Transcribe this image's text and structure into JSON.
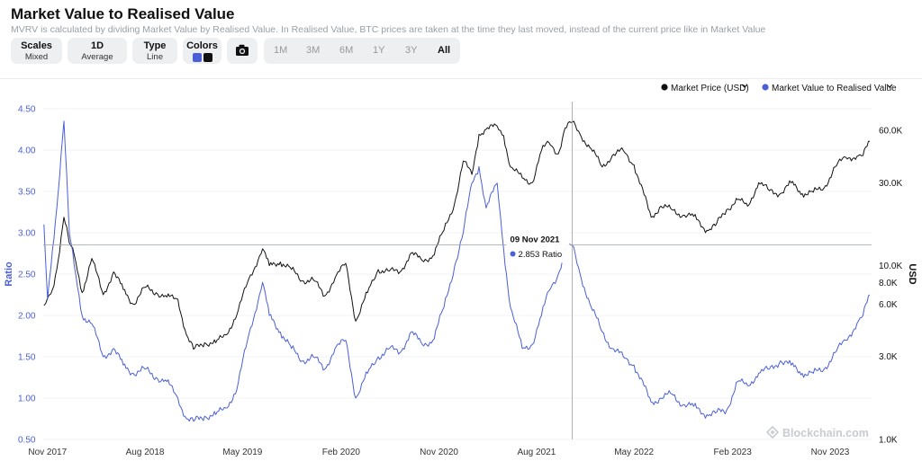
{
  "header": {
    "title": "Market Value to Realised Value",
    "subtitle": "MVRV is calculated by dividing Market Value by Realised Value. In Realised Value, BTC prices are taken at the time they last moved, instead of the current price like in Market Value"
  },
  "toolbar": {
    "scales": {
      "label": "Scales",
      "value": "Mixed"
    },
    "interval": {
      "label": "1D",
      "value": "Average"
    },
    "type": {
      "label": "Type",
      "value": "Line"
    },
    "colors": {
      "label": "Colors",
      "swatches": [
        "#4a5fd8",
        "#111111"
      ]
    },
    "camera_icon": "camera-icon",
    "ranges": [
      "1M",
      "3M",
      "6M",
      "1Y",
      "3Y",
      "All"
    ],
    "active_range": "All"
  },
  "legend": {
    "market_price": "Market Price (USD)",
    "mvrv": "Market Value to Realised Value"
  },
  "tooltip": {
    "date": "09 Nov 2021",
    "value": "2.853 Ratio"
  },
  "watermark": "Blockchain.com",
  "chart_data": {
    "type": "line",
    "x_tick_labels": [
      "Nov 2017",
      "Aug 2018",
      "May 2019",
      "Feb 2020",
      "Nov 2020",
      "Aug 2021",
      "May 2022",
      "Feb 2023",
      "Nov 2023"
    ],
    "x_tick_dates": [
      "2017-11-01",
      "2018-08-01",
      "2019-05-01",
      "2020-02-01",
      "2020-11-01",
      "2021-08-01",
      "2022-05-01",
      "2023-02-01",
      "2023-11-01"
    ],
    "x_range": [
      "2017-10-20",
      "2024-02-25"
    ],
    "y_left": {
      "label": "Ratio",
      "range": [
        0.5,
        4.5
      ],
      "ticks": [
        "0.50",
        "1.00",
        "1.50",
        "2.00",
        "2.50",
        "3.00",
        "3.50",
        "4.00",
        "4.50"
      ],
      "color": "#4a5fd8"
    },
    "y_right": {
      "label": "USD",
      "scale": "log",
      "range": [
        1000,
        80000
      ],
      "ticks": [
        {
          "label": "1.0K",
          "value": 1000
        },
        {
          "label": "3.0K",
          "value": 3000
        },
        {
          "label": "6.0K",
          "value": 6000
        },
        {
          "label": "8.0K",
          "value": 8000
        },
        {
          "label": "10.0K",
          "value": 10000
        },
        {
          "label": "30.0K",
          "value": 30000
        },
        {
          "label": "60.0K",
          "value": 60000
        }
      ]
    },
    "crosshair": {
      "date": "2021-11-09",
      "ratio": 2.853
    },
    "series": [
      {
        "name": "Market Value to Realised Value",
        "axis": "left",
        "color": "#4a5fd8",
        "x": [
          "2017-10-22",
          "2017-11-01",
          "2017-11-15",
          "2017-12-01",
          "2017-12-17",
          "2018-01-01",
          "2018-01-15",
          "2018-02-06",
          "2018-03-05",
          "2018-04-06",
          "2018-05-05",
          "2018-06-01",
          "2018-06-29",
          "2018-08-01",
          "2018-09-01",
          "2018-10-01",
          "2018-11-01",
          "2018-11-25",
          "2018-12-15",
          "2019-01-15",
          "2019-02-15",
          "2019-03-15",
          "2019-04-15",
          "2019-05-15",
          "2019-06-26",
          "2019-07-15",
          "2019-08-15",
          "2019-09-15",
          "2019-10-15",
          "2019-11-15",
          "2019-12-17",
          "2020-01-15",
          "2020-02-14",
          "2020-03-13",
          "2020-04-15",
          "2020-05-15",
          "2020-06-15",
          "2020-07-15",
          "2020-08-15",
          "2020-09-15",
          "2020-10-15",
          "2020-11-15",
          "2020-12-15",
          "2021-01-08",
          "2021-02-01",
          "2021-02-21",
          "2021-03-13",
          "2021-04-13",
          "2021-05-01",
          "2021-05-20",
          "2021-06-22",
          "2021-07-20",
          "2021-08-15",
          "2021-09-05",
          "2021-10-01",
          "2021-10-20",
          "2021-11-09",
          "2021-12-01",
          "2022-01-01",
          "2022-02-01",
          "2022-03-01",
          "2022-04-01",
          "2022-05-01",
          "2022-06-18",
          "2022-07-15",
          "2022-08-15",
          "2022-09-15",
          "2022-10-15",
          "2022-11-21",
          "2022-12-15",
          "2023-01-15",
          "2023-02-15",
          "2023-03-15",
          "2023-04-15",
          "2023-05-15",
          "2023-06-15",
          "2023-07-15",
          "2023-08-15",
          "2023-09-15",
          "2023-10-15",
          "2023-11-15",
          "2023-12-15",
          "2024-01-15",
          "2024-02-01",
          "2024-02-20"
        ],
        "values": [
          3.1,
          2.2,
          2.8,
          3.5,
          4.35,
          3.0,
          2.6,
          2.0,
          1.9,
          1.5,
          1.6,
          1.4,
          1.3,
          1.35,
          1.25,
          1.2,
          1.0,
          0.75,
          0.72,
          0.78,
          0.8,
          0.88,
          1.1,
          1.7,
          2.4,
          2.0,
          1.8,
          1.6,
          1.45,
          1.5,
          1.35,
          1.6,
          1.7,
          1.0,
          1.3,
          1.5,
          1.6,
          1.55,
          1.8,
          1.65,
          1.7,
          2.1,
          2.6,
          3.0,
          3.6,
          3.8,
          3.3,
          3.6,
          2.8,
          2.1,
          1.6,
          1.65,
          2.0,
          2.3,
          2.5,
          2.8,
          2.85,
          2.5,
          2.1,
          1.8,
          1.6,
          1.5,
          1.4,
          0.95,
          1.0,
          1.05,
          0.92,
          0.9,
          0.8,
          0.82,
          0.85,
          1.2,
          1.15,
          1.3,
          1.35,
          1.45,
          1.4,
          1.3,
          1.3,
          1.35,
          1.55,
          1.7,
          1.9,
          2.0,
          2.25
        ]
      },
      {
        "name": "Market Price (USD)",
        "axis": "right",
        "color": "#111111",
        "x": [
          "2017-10-22",
          "2017-11-01",
          "2017-11-15",
          "2017-12-01",
          "2017-12-17",
          "2018-01-01",
          "2018-01-15",
          "2018-02-06",
          "2018-03-05",
          "2018-04-06",
          "2018-05-05",
          "2018-06-01",
          "2018-06-29",
          "2018-08-01",
          "2018-09-01",
          "2018-10-01",
          "2018-11-01",
          "2018-11-25",
          "2018-12-15",
          "2019-01-15",
          "2019-02-15",
          "2019-03-15",
          "2019-04-15",
          "2019-05-15",
          "2019-06-26",
          "2019-07-15",
          "2019-08-15",
          "2019-09-15",
          "2019-10-15",
          "2019-11-15",
          "2019-12-17",
          "2020-01-15",
          "2020-02-14",
          "2020-03-13",
          "2020-04-15",
          "2020-05-15",
          "2020-06-15",
          "2020-07-15",
          "2020-08-15",
          "2020-09-15",
          "2020-10-15",
          "2020-11-15",
          "2020-12-15",
          "2021-01-08",
          "2021-02-01",
          "2021-02-21",
          "2021-03-13",
          "2021-04-13",
          "2021-05-01",
          "2021-05-20",
          "2021-06-22",
          "2021-07-20",
          "2021-08-15",
          "2021-09-05",
          "2021-10-01",
          "2021-10-20",
          "2021-11-09",
          "2021-12-01",
          "2022-01-01",
          "2022-02-01",
          "2022-03-01",
          "2022-04-01",
          "2022-05-01",
          "2022-06-18",
          "2022-07-15",
          "2022-08-15",
          "2022-09-15",
          "2022-10-15",
          "2022-11-21",
          "2022-12-15",
          "2023-01-15",
          "2023-02-15",
          "2023-03-15",
          "2023-04-15",
          "2023-05-15",
          "2023-06-15",
          "2023-07-15",
          "2023-08-15",
          "2023-09-15",
          "2023-10-15",
          "2023-11-15",
          "2023-12-15",
          "2024-01-15",
          "2024-02-01",
          "2024-02-20"
        ],
        "values": [
          5900,
          6500,
          7300,
          10800,
          19000,
          13500,
          11500,
          7000,
          11000,
          6800,
          9200,
          7300,
          6000,
          7500,
          7000,
          6600,
          6400,
          4000,
          3300,
          3600,
          3600,
          4000,
          5200,
          8000,
          12500,
          10000,
          10500,
          9500,
          8200,
          8300,
          6700,
          8500,
          10300,
          4800,
          7000,
          9500,
          9300,
          9200,
          11800,
          10700,
          11400,
          16000,
          23000,
          40000,
          33500,
          57000,
          61000,
          63500,
          56000,
          37000,
          32000,
          30000,
          46000,
          51000,
          44000,
          62000,
          67000,
          57000,
          47000,
          37000,
          43000,
          46000,
          38000,
          19000,
          22000,
          21000,
          19500,
          19200,
          16000,
          17000,
          21000,
          24000,
          22000,
          30000,
          27000,
          26000,
          30000,
          26000,
          26500,
          28000,
          37000,
          42000,
          42500,
          43000,
          52000
        ]
      }
    ]
  }
}
